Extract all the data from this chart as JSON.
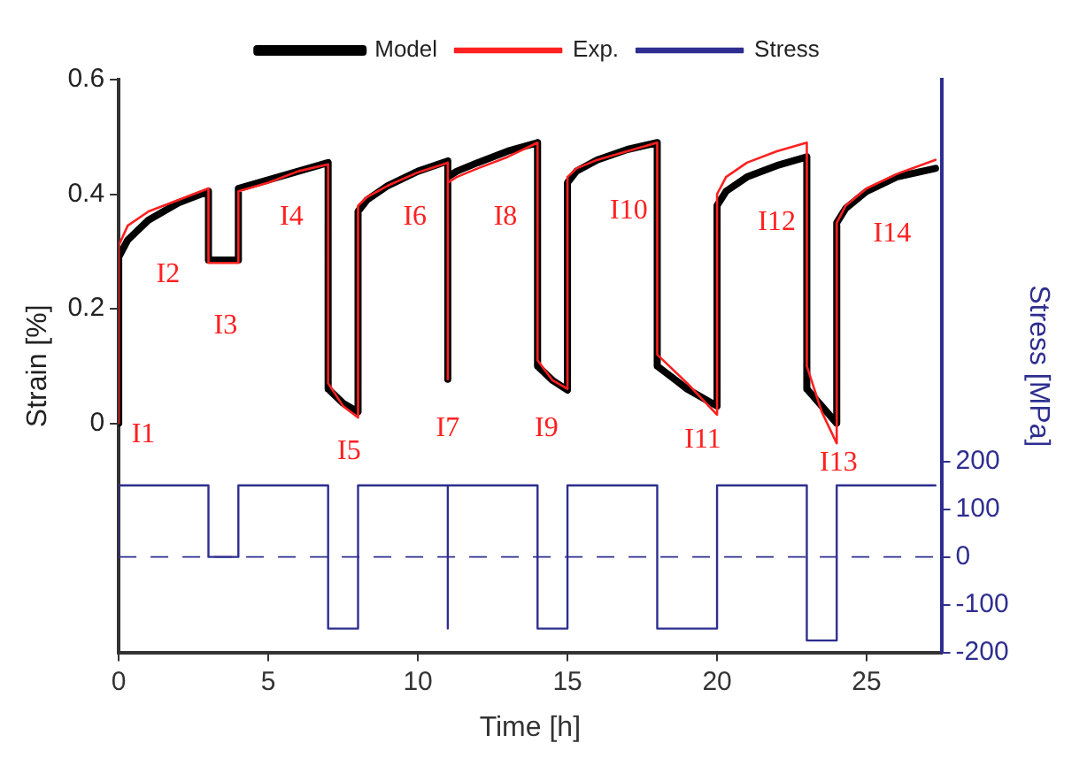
{
  "chart_data": {
    "type": "line",
    "xlabel": "Time [h]",
    "ylabel": "Strain [%]",
    "y2label": "Stress [MPa]",
    "xlim": [
      0,
      27.5
    ],
    "xticks": [
      0,
      5,
      10,
      15,
      20,
      25
    ],
    "ylim": [
      -0.4,
      0.6
    ],
    "yticks": [
      0,
      0.2,
      0.4,
      0.6
    ],
    "y2lim": [
      -200,
      1000
    ],
    "y2ticks": [
      -200,
      -100,
      0,
      100,
      200
    ],
    "grid": false,
    "legend": "top",
    "marker": "none",
    "series": [
      {
        "name": "Model",
        "color": "#000000",
        "x": [
          0,
          0,
          0.3,
          1,
          2,
          3,
          3,
          4,
          4,
          5,
          6,
          7,
          7,
          7.5,
          8,
          8,
          8.3,
          9,
          10,
          11,
          11,
          11,
          11.3,
          12,
          13,
          14,
          14,
          14.5,
          15,
          15,
          15.3,
          16,
          17,
          18,
          18,
          19,
          20,
          20,
          20.3,
          21,
          22,
          23,
          23,
          23.5,
          24,
          24,
          24.3,
          25,
          26,
          27.3
        ],
        "values": [
          0,
          0.29,
          0.32,
          0.355,
          0.385,
          0.405,
          0.285,
          0.285,
          0.41,
          0.425,
          0.44,
          0.455,
          0.06,
          0.035,
          0.02,
          0.37,
          0.39,
          0.415,
          0.44,
          0.458,
          0.077,
          0.43,
          0.44,
          0.455,
          0.475,
          0.49,
          0.1,
          0.075,
          0.058,
          0.42,
          0.44,
          0.46,
          0.478,
          0.49,
          0.1,
          0.06,
          0.03,
          0.38,
          0.405,
          0.43,
          0.45,
          0.465,
          0.06,
          0.03,
          0,
          0.35,
          0.375,
          0.405,
          0.43,
          0.445
        ]
      },
      {
        "name": "Exp.",
        "color": "#ff2020",
        "x": [
          0,
          0,
          0.3,
          1,
          2,
          3,
          3,
          4,
          4,
          5,
          6,
          7,
          7,
          7.5,
          8,
          8,
          8.3,
          9,
          10,
          11,
          11,
          11,
          11.3,
          12,
          13,
          14,
          14,
          14.5,
          15,
          15,
          15.3,
          16,
          17,
          18,
          18,
          19,
          20,
          20,
          20.3,
          21,
          22,
          23,
          23,
          23.5,
          24,
          24,
          24.3,
          25,
          26,
          27.3
        ],
        "values": [
          0,
          0.31,
          0.345,
          0.37,
          0.39,
          0.41,
          0.28,
          0.28,
          0.405,
          0.42,
          0.44,
          0.452,
          0.07,
          0.03,
          0.01,
          0.38,
          0.395,
          0.415,
          0.438,
          0.455,
          0.077,
          0.42,
          0.43,
          0.445,
          0.465,
          0.49,
          0.11,
          0.075,
          0.06,
          0.43,
          0.445,
          0.46,
          0.475,
          0.49,
          0.12,
          0.07,
          0.015,
          0.4,
          0.43,
          0.455,
          0.475,
          0.49,
          0.1,
          0.02,
          -0.035,
          0.35,
          0.38,
          0.41,
          0.435,
          0.46
        ]
      },
      {
        "name": "Stress",
        "color": "#2e2e90",
        "axis": "y2",
        "x": [
          0,
          0,
          3,
          3,
          4,
          4,
          7,
          7,
          8,
          8,
          11,
          11,
          11,
          14,
          14,
          15,
          15,
          18,
          18,
          20,
          20,
          23,
          23,
          24,
          24,
          27.3
        ],
        "values": [
          0,
          150,
          150,
          0,
          0,
          150,
          150,
          -150,
          -150,
          150,
          150,
          -150,
          150,
          150,
          -150,
          -150,
          150,
          150,
          -150,
          -150,
          150,
          150,
          -175,
          -175,
          150,
          150
        ]
      }
    ],
    "ref_lines": [
      {
        "axis": "y2",
        "value": 0,
        "color": "#2e2e90",
        "line_style": "dashed"
      }
    ],
    "annotations": [
      "I1",
      "I2",
      "I3",
      "I4",
      "I5",
      "I6",
      "I7",
      "I8",
      "I9",
      "I10",
      "I11",
      "I12",
      "I13",
      "I14"
    ]
  }
}
